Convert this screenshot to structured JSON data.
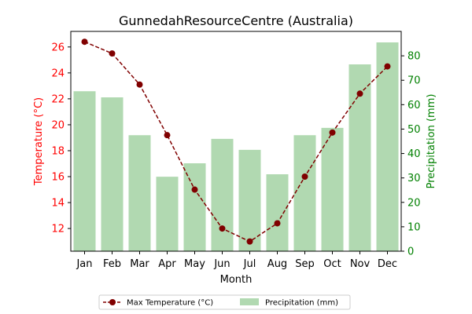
{
  "chart_data": {
    "type": "bar+line",
    "title": "GunnedahResourceCentre (Australia)",
    "xlabel": "Month",
    "ylabel_left": "Temperature (°C)",
    "ylabel_right": "Precipitation (mm)",
    "categories": [
      "Jan",
      "Feb",
      "Mar",
      "Apr",
      "May",
      "Jun",
      "Jul",
      "Aug",
      "Sep",
      "Oct",
      "Nov",
      "Dec"
    ],
    "series": [
      {
        "name": "Max Temperature (°C)",
        "type": "line",
        "axis": "left",
        "color": "#800000",
        "values": [
          26.4,
          25.5,
          23.1,
          19.2,
          15.0,
          12.0,
          11.0,
          12.4,
          16.0,
          19.4,
          22.4,
          24.5
        ]
      },
      {
        "name": "Precipitation (mm)",
        "type": "bar",
        "axis": "right",
        "color": "#b1d9b1",
        "values": [
          65.5,
          63.0,
          47.5,
          30.5,
          36.0,
          46.0,
          41.5,
          31.5,
          47.5,
          50.5,
          76.5,
          85.5
        ]
      }
    ],
    "ylim_left": [
      10.25,
      27.2
    ],
    "ylim_right": [
      0,
      90
    ],
    "yticks_left": [
      12,
      14,
      16,
      18,
      20,
      22,
      24,
      26
    ],
    "yticks_right": [
      0,
      10,
      20,
      30,
      40,
      50,
      60,
      70,
      80
    ],
    "left_axis_color": "#ff0000",
    "right_axis_color": "#008000",
    "grid": false,
    "legend_placement": "bottom-center"
  }
}
